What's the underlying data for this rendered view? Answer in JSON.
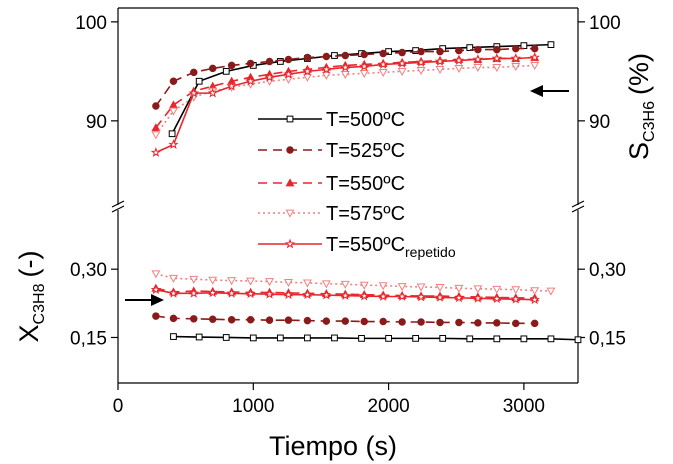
{
  "chart_data": [
    {
      "type": "line",
      "y_label": "S",
      "y_label_sub": "C3H6",
      "y_label_unit": "(%)",
      "xlim": [
        0,
        3400
      ],
      "ylim": [
        81.5,
        101.4
      ],
      "yticks": [
        90,
        100
      ],
      "legend": "center",
      "series": [
        {
          "name": "T=500ºC",
          "color": "#000000",
          "dash": "solid",
          "marker": "square",
          "filled": false,
          "x": [
            400,
            600,
            800,
            1000,
            1200,
            1400,
            1600,
            1800,
            2000,
            2200,
            2400,
            2600,
            2800,
            3000,
            3200
          ],
          "values": [
            88.7,
            94.0,
            95.0,
            95.6,
            96.0,
            96.3,
            96.6,
            96.8,
            97.0,
            97.1,
            97.3,
            97.4,
            97.5,
            97.6,
            97.7
          ]
        },
        {
          "name": "T=525ºC",
          "color": "#8b1a1a",
          "dash": "dashed",
          "marker": "circle",
          "filled": true,
          "x": [
            280,
            410,
            560,
            700,
            840,
            980,
            1120,
            1260,
            1400,
            1540,
            1680,
            1820,
            1960,
            2100,
            2240,
            2380,
            2520,
            2660,
            2800,
            2940,
            3080
          ],
          "values": [
            91.5,
            94.0,
            94.9,
            95.3,
            95.6,
            95.8,
            96.0,
            96.2,
            96.4,
            96.5,
            96.6,
            96.7,
            96.8,
            96.9,
            97.0,
            97.0,
            97.1,
            97.2,
            97.2,
            97.3,
            97.3
          ]
        },
        {
          "name": "T=550ºC",
          "color": "#e8262b",
          "dash": "dashed",
          "marker": "triangle",
          "filled": true,
          "x": [
            280,
            410,
            560,
            700,
            840,
            980,
            1120,
            1260,
            1400,
            1540,
            1680,
            1820,
            1960,
            2100,
            2240,
            2380,
            2520,
            2660,
            2800,
            2940,
            3080
          ],
          "values": [
            89.3,
            91.6,
            93.0,
            93.5,
            94.0,
            94.4,
            94.7,
            95.0,
            95.2,
            95.4,
            95.6,
            95.7,
            95.8,
            95.9,
            96.0,
            96.1,
            96.2,
            96.2,
            96.3,
            96.3,
            96.4
          ]
        },
        {
          "name": "T=575ºC",
          "color": "#f08080",
          "dash": "dotted",
          "marker": "triangle-down",
          "filled": false,
          "x": [
            280,
            410,
            560,
            700,
            840,
            980,
            1120,
            1260,
            1400,
            1540,
            1680,
            1820,
            1960,
            2100,
            2240,
            2380,
            2520,
            2660,
            2800,
            2940,
            3080
          ],
          "values": [
            88.6,
            91.0,
            92.4,
            93.0,
            93.4,
            93.7,
            94.0,
            94.2,
            94.4,
            94.6,
            94.7,
            94.8,
            94.9,
            95.0,
            95.1,
            95.2,
            95.3,
            95.4,
            95.4,
            95.5,
            95.6
          ]
        },
        {
          "name": "T=550ºC",
          "name_sub": "repetido",
          "color": "#e8262b",
          "dash": "solid",
          "marker": "star",
          "filled": false,
          "x": [
            280,
            410,
            560,
            700,
            840,
            980,
            1120,
            1260,
            1400,
            1540,
            1680,
            1820,
            1960,
            2100,
            2240,
            2380,
            2520,
            2660,
            2800,
            2940,
            3080
          ],
          "values": [
            86.8,
            87.6,
            92.8,
            92.8,
            93.5,
            94.0,
            94.4,
            94.7,
            95.0,
            95.2,
            95.4,
            95.5,
            95.7,
            95.8,
            95.9,
            96.0,
            96.1,
            96.2,
            96.3,
            96.3,
            96.4
          ]
        }
      ]
    },
    {
      "type": "line",
      "x_label": "Tiempo (s)",
      "y_label": "X",
      "y_label_sub": "C3H8",
      "y_label_unit": "(-)",
      "xlim": [
        0,
        3400
      ],
      "xticks": [
        0,
        1000,
        2000,
        3000
      ],
      "ylim": [
        0.05,
        0.43
      ],
      "yticks": [
        {
          "value": 0.15,
          "label": "0,15"
        },
        {
          "value": 0.3,
          "label": "0,30"
        }
      ],
      "series": [
        {
          "color": "#000000",
          "dash": "solid",
          "marker": "square",
          "filled": false,
          "x": [
            410,
            600,
            800,
            1000,
            1200,
            1400,
            1600,
            1800,
            2000,
            2200,
            2400,
            2600,
            2800,
            3000,
            3200,
            3400
          ],
          "values": [
            0.152,
            0.151,
            0.15,
            0.149,
            0.149,
            0.149,
            0.149,
            0.148,
            0.148,
            0.148,
            0.148,
            0.147,
            0.147,
            0.147,
            0.147,
            0.145
          ]
        },
        {
          "color": "#8b1a1a",
          "dash": "dashed",
          "marker": "circle",
          "filled": true,
          "x": [
            280,
            410,
            560,
            700,
            840,
            980,
            1120,
            1260,
            1400,
            1540,
            1680,
            1820,
            1960,
            2100,
            2240,
            2380,
            2520,
            2660,
            2800,
            2940,
            3080
          ],
          "values": [
            0.197,
            0.192,
            0.191,
            0.19,
            0.189,
            0.189,
            0.188,
            0.188,
            0.187,
            0.186,
            0.186,
            0.185,
            0.185,
            0.184,
            0.184,
            0.183,
            0.183,
            0.182,
            0.182,
            0.181,
            0.181
          ]
        },
        {
          "color": "#e8262b",
          "dash": "dashed",
          "marker": "triangle",
          "filled": true,
          "x": [
            280,
            410,
            560,
            700,
            840,
            980,
            1120,
            1260,
            1400,
            1540,
            1680,
            1820,
            1960,
            2100,
            2240,
            2380,
            2520,
            2660,
            2800,
            2940,
            3080
          ],
          "values": [
            0.258,
            0.25,
            0.252,
            0.251,
            0.25,
            0.249,
            0.249,
            0.248,
            0.247,
            0.246,
            0.245,
            0.244,
            0.243,
            0.242,
            0.241,
            0.241,
            0.24,
            0.239,
            0.238,
            0.237,
            0.237
          ]
        },
        {
          "color": "#f08080",
          "dash": "dotted",
          "marker": "triangle-down",
          "filled": false,
          "x": [
            280,
            410,
            560,
            700,
            840,
            980,
            1120,
            1260,
            1400,
            1540,
            1680,
            1820,
            1960,
            2100,
            2240,
            2380,
            2520,
            2660,
            2800,
            2940,
            3080,
            3200
          ],
          "values": [
            0.29,
            0.28,
            0.278,
            0.276,
            0.275,
            0.274,
            0.273,
            0.271,
            0.27,
            0.268,
            0.267,
            0.265,
            0.264,
            0.262,
            0.261,
            0.26,
            0.258,
            0.257,
            0.256,
            0.255,
            0.253,
            0.252
          ]
        },
        {
          "color": "#e8262b",
          "dash": "solid",
          "marker": "star",
          "filled": false,
          "x": [
            280,
            410,
            560,
            700,
            840,
            980,
            1120,
            1260,
            1400,
            1540,
            1680,
            1820,
            1960,
            2100,
            2240,
            2380,
            2520,
            2660,
            2800,
            2940,
            3080
          ],
          "values": [
            0.255,
            0.247,
            0.247,
            0.248,
            0.247,
            0.246,
            0.245,
            0.244,
            0.244,
            0.243,
            0.242,
            0.241,
            0.24,
            0.24,
            0.239,
            0.238,
            0.237,
            0.236,
            0.235,
            0.234,
            0.233
          ]
        }
      ]
    }
  ]
}
